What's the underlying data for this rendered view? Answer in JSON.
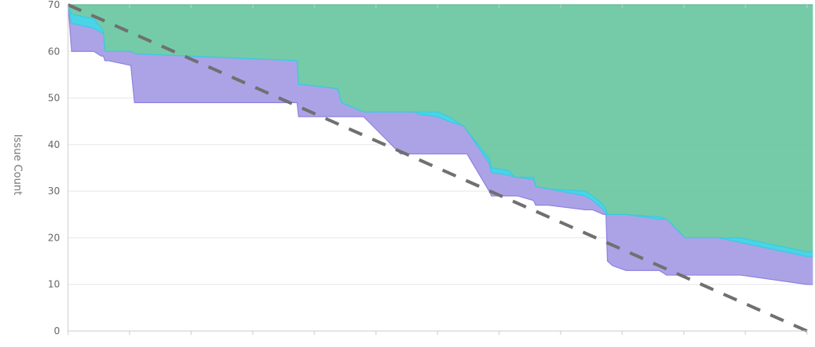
{
  "chart_data": {
    "type": "area",
    "title": "",
    "xlabel": "",
    "ylabel": "Issue Count",
    "ylim": [
      0,
      70
    ],
    "y_ticks": [
      0,
      10,
      20,
      30,
      40,
      50,
      60,
      70
    ],
    "x_tick_count": 12,
    "grid": true,
    "legend": "none",
    "colors": {
      "green": "#6ec8a2",
      "cyan": "#3fd3e6",
      "purple": "#a89ee6",
      "ideal": "#707070",
      "grid": "#e6e6ee"
    },
    "x": [
      0,
      0.5,
      3.5,
      4.5,
      4.8,
      5,
      5.5,
      8.5,
      9,
      31,
      31.2,
      36.5,
      37,
      38.5,
      40,
      45,
      45.5,
      47,
      47.5,
      50,
      51.5,
      53.5,
      54,
      57,
      57.3,
      59.5,
      60.5,
      60.8,
      63,
      63.3,
      65,
      70,
      71,
      72.5,
      72.8,
      73,
      73.7,
      75.5,
      80,
      81,
      83.5,
      84,
      86.5,
      88,
      91,
      100,
      100.8
    ],
    "series": [
      {
        "values": [
          70,
          60,
          60,
          59,
          59,
          58,
          58,
          57,
          49,
          49,
          46,
          46,
          46,
          46,
          46,
          38,
          38,
          38,
          38,
          38,
          38,
          38,
          38,
          30,
          29,
          29,
          29,
          29,
          28,
          27,
          27,
          26,
          26,
          25,
          25,
          15,
          14,
          13,
          13,
          12,
          12,
          12,
          12,
          12,
          12,
          10,
          10
        ]
      },
      {
        "values": [
          70,
          66,
          65,
          64,
          64,
          60,
          60,
          60,
          59.5,
          58,
          53,
          52,
          49,
          48,
          47,
          47,
          47,
          47,
          46.5,
          46,
          45,
          44,
          43,
          36,
          34,
          33.5,
          33,
          33,
          32.5,
          31,
          30.5,
          29,
          28,
          26,
          25,
          25,
          25,
          25,
          24,
          24,
          20,
          20,
          20,
          20,
          19,
          16,
          16
        ]
      },
      {
        "values": [
          70,
          68,
          67,
          65,
          64,
          60,
          60,
          60,
          59.5,
          58,
          53,
          52,
          49,
          48,
          47,
          47,
          47,
          47,
          47,
          47,
          46,
          44,
          43,
          37,
          35,
          34.5,
          33,
          33,
          33,
          31,
          30.5,
          30,
          29,
          27,
          26,
          25,
          25,
          25,
          24.5,
          24,
          20,
          20,
          20,
          20,
          20,
          17,
          17
        ]
      },
      {
        "values": [
          70,
          70,
          70,
          70,
          70,
          70,
          70,
          70,
          70,
          70,
          70,
          70,
          70,
          70,
          70,
          70,
          70,
          70,
          70,
          70,
          70,
          70,
          70,
          70,
          70,
          70,
          70,
          70,
          70,
          70,
          70,
          70,
          70,
          70,
          70,
          70,
          70,
          70,
          70,
          70,
          70,
          70,
          70,
          70,
          70,
          70,
          70
        ]
      }
    ],
    "ideal_line": {
      "x": [
        0,
        100
      ],
      "values": [
        70,
        0
      ]
    }
  }
}
